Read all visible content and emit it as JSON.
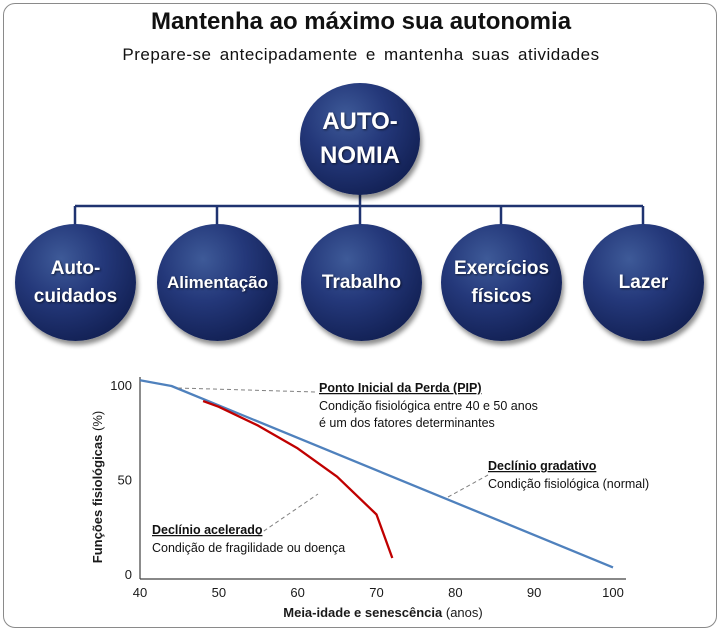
{
  "header": {
    "title": "Mantenha ao máximo sua autonomia",
    "subtitle": "Prepare-se antecipadamente e mantenha suas atividades"
  },
  "hierarchy": {
    "root": "AUTO-\nNOMIA",
    "children": [
      "Auto-\ncuidados",
      "Alimentação",
      "Trabalho",
      "Exercícios\nfísicos",
      "Lazer"
    ],
    "circle_color": "#1f3370",
    "connector_color": "#1f3370"
  },
  "chart_data": {
    "type": "line",
    "xlabel_bold": "Meia-idade e senescência",
    "xlabel_unit": "(anos)",
    "ylabel_bold": "Funções fisiológicas",
    "ylabel_unit": "(%)",
    "xlim": [
      40,
      100
    ],
    "ylim": [
      0,
      100
    ],
    "x_ticks": [
      40,
      50,
      60,
      70,
      80,
      90,
      100
    ],
    "y_ticks": [
      0,
      50,
      100
    ],
    "series": [
      {
        "color": "#4f81bd",
        "x": [
          40,
          44,
          100
        ],
        "y": [
          103,
          100,
          4
        ]
      },
      {
        "color": "#c00000",
        "x": [
          48,
          50,
          55,
          60,
          65,
          70,
          72
        ],
        "y": [
          92,
          89,
          79,
          67,
          52,
          32,
          9
        ]
      }
    ],
    "annotations": {
      "pip": {
        "title": "Ponto Inicial da Perda (PIP)",
        "line1": "Condição fisiológica entre 40 e 50 anos",
        "line2": "é um dos fatores determinantes"
      },
      "gradual": {
        "title": "Declínio gradativo",
        "line1": "Condição fisiológica (normal)"
      },
      "accel": {
        "title": "Declínio acelerado",
        "line1": "Condição de fragilidade ou doença"
      }
    }
  }
}
